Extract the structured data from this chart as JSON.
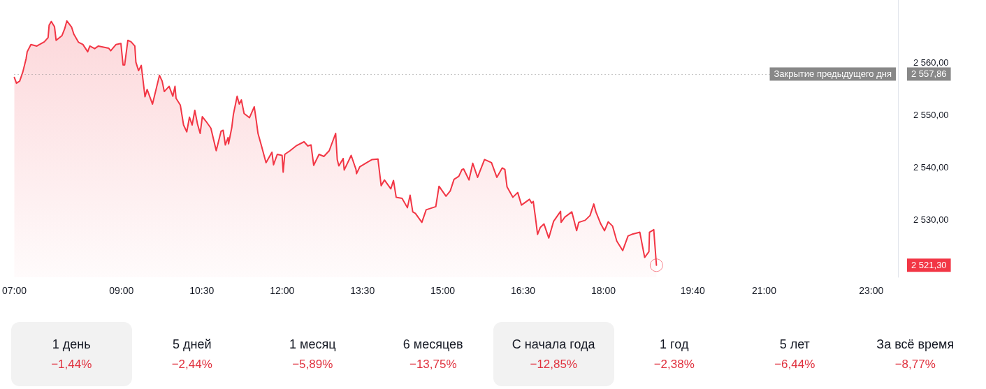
{
  "chart_data": [
    {
      "type": "area",
      "color": "#f23645",
      "x": [
        7.0,
        7.04,
        7.1,
        7.16,
        7.22,
        7.24,
        7.31,
        7.42,
        7.56,
        7.63,
        7.65,
        7.69,
        7.75,
        7.78,
        7.89,
        7.94,
        7.98,
        8.07,
        8.11,
        8.2,
        8.28,
        8.37,
        8.41,
        8.5,
        8.57,
        8.76,
        8.8,
        8.9,
        8.99,
        9.03,
        9.06,
        9.12,
        9.18,
        9.25,
        9.27,
        9.32,
        9.37,
        9.44,
        9.48,
        9.58,
        9.71,
        9.76,
        9.8,
        9.89,
        9.96,
        10.0,
        10.02,
        10.1,
        10.16,
        10.22,
        10.27,
        10.32,
        10.37,
        10.42,
        10.47,
        10.51,
        10.58,
        10.67,
        10.77,
        10.86,
        10.9,
        10.94,
        10.99,
        11.0,
        11.06,
        11.09,
        11.16,
        11.2,
        11.24,
        11.29,
        11.39,
        11.48,
        11.52,
        11.55,
        11.61,
        11.7,
        11.81,
        11.84,
        11.91,
        12.0,
        12.02,
        12.05,
        12.15,
        12.26,
        12.41,
        12.48,
        12.54,
        12.59,
        12.69,
        12.78,
        12.88,
        13.0,
        13.03,
        13.06,
        13.14,
        13.16,
        13.29,
        13.38,
        13.39,
        13.45,
        13.58,
        13.68,
        13.79,
        13.85,
        13.91,
        14.03,
        14.08,
        14.13,
        14.24,
        14.34,
        14.39,
        14.44,
        14.49,
        14.61,
        14.69,
        14.87,
        14.93,
        15.06,
        15.14,
        15.21,
        15.3,
        15.36,
        15.39,
        15.49,
        15.56,
        15.65,
        15.78,
        15.91,
        16.01,
        16.11,
        16.16,
        16.2,
        16.31,
        16.4,
        16.47,
        16.62,
        16.66,
        16.69,
        16.73,
        16.77,
        16.82,
        16.89,
        16.98,
        17.07,
        17.2,
        17.21,
        17.28,
        17.41,
        17.5,
        17.54,
        17.66,
        17.75,
        17.82,
        17.86,
        17.95,
        18.02,
        18.09,
        18.17,
        18.25,
        18.36,
        18.46,
        18.53,
        18.68,
        18.77,
        18.85,
        18.86,
        18.94,
        18.99
      ],
      "values": [
        2557.2,
        2556.1,
        2556.5,
        2558.3,
        2560.8,
        2562.1,
        2563.5,
        2563.2,
        2564.0,
        2564.8,
        2567.2,
        2567.9,
        2566.9,
        2564.3,
        2565.2,
        2566.5,
        2568.0,
        2566.8,
        2565.5,
        2563.9,
        2563.5,
        2562.1,
        2563.2,
        2562.7,
        2563.2,
        2562.8,
        2562.3,
        2563.5,
        2563.7,
        2559.6,
        2559.6,
        2564.3,
        2564.0,
        2563.2,
        2560.1,
        2558.5,
        2559.5,
        2553.5,
        2554.9,
        2552.1,
        2557.6,
        2556.5,
        2554.5,
        2555.5,
        2553.6,
        2555.5,
        2553.2,
        2551.9,
        2548.1,
        2546.8,
        2549.6,
        2548.1,
        2550.9,
        2548.3,
        2546.5,
        2549.7,
        2548.8,
        2547.5,
        2543.2,
        2546.9,
        2547.1,
        2544.3,
        2545.7,
        2544.5,
        2547.6,
        2550.1,
        2553.6,
        2552.1,
        2552.9,
        2550.3,
        2549.5,
        2551.6,
        2548.8,
        2546.5,
        2544.3,
        2540.9,
        2542.9,
        2540.5,
        2542.5,
        2542.3,
        2539.1,
        2542.5,
        2543.2,
        2544.1,
        2544.9,
        2544.1,
        2544.3,
        2540.4,
        2542.5,
        2542.1,
        2543.2,
        2546.5,
        2541.5,
        2540.3,
        2541.7,
        2539.5,
        2542.3,
        2539.6,
        2538.8,
        2540.1,
        2540.9,
        2541.5,
        2541.6,
        2536.5,
        2537.6,
        2535.9,
        2537.5,
        2534.3,
        2534.1,
        2532.3,
        2534.7,
        2531.5,
        2531.2,
        2529.5,
        2531.9,
        2532.5,
        2536.4,
        2534.5,
        2535.5,
        2537.7,
        2538.3,
        2539.6,
        2539.7,
        2537.6,
        2540.8,
        2538.1,
        2541.5,
        2540.9,
        2538.1,
        2539.9,
        2539.6,
        2536.3,
        2534.3,
        2535.2,
        2532.8,
        2533.9,
        2533.2,
        2533.5,
        2530.5,
        2527.2,
        2528.5,
        2529.2,
        2526.5,
        2529.7,
        2531.6,
        2529.5,
        2530.5,
        2531.5,
        2527.9,
        2529.5,
        2529.9,
        2530.8,
        2533.0,
        2531.5,
        2529.2,
        2527.9,
        2529.6,
        2528.8,
        2525.9,
        2524.1,
        2526.9,
        2527.2,
        2527.6,
        2522.8,
        2523.9,
        2527.6,
        2528.1,
        2521.3
      ],
      "xlim": [
        7,
        23.5
      ],
      "xticks": [
        {
          "value": 7,
          "label": "07:00"
        },
        {
          "value": 9,
          "label": "09:00"
        },
        {
          "value": 10.5,
          "label": "10:30"
        },
        {
          "value": 12,
          "label": "12:00"
        },
        {
          "value": 13.5,
          "label": "13:30"
        },
        {
          "value": 15,
          "label": "15:00"
        },
        {
          "value": 16.5,
          "label": "16:30"
        },
        {
          "value": 18,
          "label": "18:00"
        },
        {
          "value": 19.667,
          "label": "19:40"
        },
        {
          "value": 21,
          "label": "21:00"
        },
        {
          "value": 23,
          "label": "23:00"
        }
      ],
      "ylim": [
        2519,
        2572
      ],
      "yticks": [
        {
          "value": 2530,
          "label": "2 530,00"
        },
        {
          "value": 2540,
          "label": "2 540,00"
        },
        {
          "value": 2550,
          "label": "2 550,00"
        },
        {
          "value": 2560,
          "label": "2 560,00"
        }
      ],
      "grid": false,
      "ref_lines": [
        {
          "axis": "y",
          "value": 2557.86,
          "label": "Закрытие предыдущего дня",
          "color": "#888888",
          "line_style": "dotted"
        }
      ],
      "annotations": [
        "2 557,86",
        "2 521,30"
      ]
    },
    {
      "type": "other",
      "categories": [
        "1 день",
        "5 дней",
        "1 месяц",
        "6 месяцев",
        "С начала года",
        "1 год",
        "5 лет",
        "За всё время"
      ],
      "values": [
        -1.44,
        -2.44,
        -5.89,
        -13.75,
        -12.85,
        -2.38,
        -6.44,
        -8.77
      ],
      "value_labels": [
        "−1,44%",
        "−2,44%",
        "−5,89%",
        "−13,75%",
        "−12,85%",
        "−2,38%",
        "−6,44%",
        "−8,77%"
      ]
    }
  ]
}
